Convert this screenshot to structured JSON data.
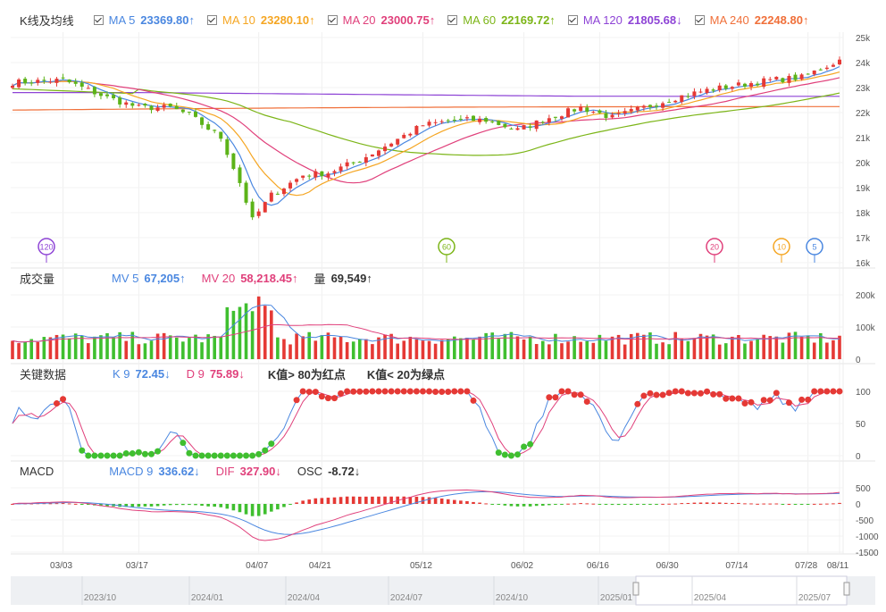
{
  "header": {
    "title": "K线及均线",
    "ma": [
      {
        "label": "MA 5",
        "value": "23369.80↑",
        "color": "#4a87e0"
      },
      {
        "label": "MA 10",
        "value": "23280.10↑",
        "color": "#f5a623"
      },
      {
        "label": "MA 20",
        "value": "23000.75↑",
        "color": "#e0407b"
      },
      {
        "label": "MA 60",
        "value": "22169.72↑",
        "color": "#7cb518"
      },
      {
        "label": "MA 120",
        "value": "21805.68↓",
        "color": "#8e44d6"
      },
      {
        "label": "MA 240",
        "value": "22248.80↑",
        "color": "#f0703a"
      }
    ]
  },
  "volume_header": {
    "title": "成交量",
    "items": [
      {
        "label": "MV 5",
        "value": "67,205↑",
        "color": "#4a87e0"
      },
      {
        "label": "MV 20",
        "value": "58,218.45↑",
        "color": "#e0407b"
      },
      {
        "label": "量",
        "value": "69,549↑",
        "color": "#333333"
      }
    ]
  },
  "kd_header": {
    "title": "关键数据",
    "items": [
      {
        "label": "K 9",
        "value": "72.45↓",
        "color": "#4a87e0"
      },
      {
        "label": "D 9",
        "value": "75.89↓",
        "color": "#e0407b"
      }
    ],
    "notes": [
      "K值> 80为红点",
      "K值< 20为绿点"
    ]
  },
  "macd_header": {
    "title": "MACD",
    "items": [
      {
        "label": "MACD 9",
        "value": "336.62↓",
        "color": "#4a87e0"
      },
      {
        "label": "DIF",
        "value": "327.90↓",
        "color": "#e0407b"
      },
      {
        "label": "OSC",
        "value": "-8.72↓",
        "color": "#333333"
      }
    ]
  },
  "chart_data": {
    "type": "candlestick",
    "x_ticks": [
      "03/03",
      "03/17",
      "04/07",
      "04/21",
      "05/12",
      "06/02",
      "06/16",
      "06/30",
      "07/14",
      "07/28",
      "08/11"
    ],
    "price_axis": {
      "ticks": [
        "25k",
        "24k",
        "23k",
        "22k",
        "21k",
        "20k",
        "19k",
        "18k",
        "17k",
        "16k"
      ],
      "range": [
        16000,
        25000
      ]
    },
    "volume_axis": {
      "ticks": [
        "200k",
        "100k",
        "0"
      ],
      "range": [
        0,
        200000
      ]
    },
    "kd_axis": {
      "ticks": [
        "100",
        "50",
        "0"
      ],
      "range": [
        0,
        100
      ]
    },
    "macd_axis": {
      "ticks": [
        "500",
        "0",
        "-500",
        "-1000",
        "-1500"
      ],
      "range": [
        -1500,
        500
      ]
    },
    "price_key_points": [
      [
        0,
        23200
      ],
      [
        8,
        23300
      ],
      [
        15,
        22600
      ],
      [
        20,
        22200
      ],
      [
        25,
        22200
      ],
      [
        28,
        21900
      ],
      [
        33,
        21000
      ],
      [
        36,
        19200
      ],
      [
        38,
        17700
      ],
      [
        41,
        18700
      ],
      [
        46,
        19500
      ],
      [
        50,
        19600
      ],
      [
        55,
        20100
      ],
      [
        60,
        20800
      ],
      [
        65,
        21500
      ],
      [
        70,
        21700
      ],
      [
        75,
        21700
      ],
      [
        80,
        21300
      ],
      [
        85,
        21800
      ],
      [
        90,
        22200
      ],
      [
        95,
        21800
      ],
      [
        100,
        22200
      ],
      [
        105,
        22600
      ],
      [
        110,
        22900
      ],
      [
        115,
        23100
      ],
      [
        120,
        23300
      ],
      [
        125,
        23400
      ],
      [
        131,
        24100
      ]
    ],
    "ma_markers": [
      {
        "label": "120",
        "color": "#8e44d6"
      },
      {
        "label": "60",
        "color": "#7cb518"
      },
      {
        "label": "20",
        "color": "#e0407b"
      },
      {
        "label": "10",
        "color": "#f5a623"
      },
      {
        "label": "5",
        "color": "#4a87e0"
      }
    ],
    "navigator": {
      "labels": [
        "2023/10",
        "2024/01",
        "2024/04",
        "2024/07",
        "2024/10",
        "2025/01",
        "2025/04",
        "2025/07"
      ]
    }
  }
}
